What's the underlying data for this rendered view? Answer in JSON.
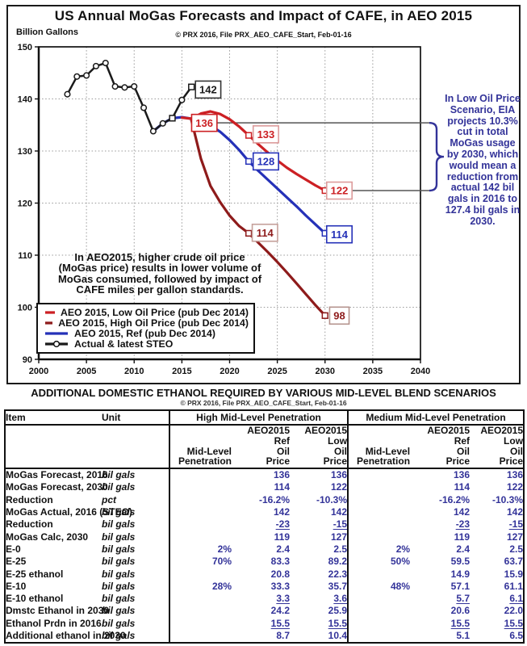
{
  "chart": {
    "title": "US Annual MoGas Forecasts and Impact of CAFE, in AEO 2015",
    "y_axis_label": "Billion Gallons",
    "credit": "© PRX 2016, File PRX_AEO_CAFE_Start, Feb-01-16",
    "note": "In AEO2015, higher crude oil price\n(MoGas price) results in lower volume of\nMoGas consumed, followed by impact of\nCAFE miles per gallon standards.",
    "annotation": "In Low Oil Price\nScenario, EIA\nprojects 10.3%\ncut in total\nMoGas usage\nby 2030, which\nwould mean a\nreduction from\nactual 142 bil\ngals in 2016 to\n127.4 bil gals in\n2030.",
    "colors": {
      "low_oil_red": "#cc2024",
      "high_oil_dark_red": "#8e1b1b",
      "ref_blue": "#2531b8",
      "actual_black": "#1a1a1a",
      "annotation_navy": "#333399",
      "table_value_navy": "#333399"
    }
  },
  "chart_data": {
    "type": "line",
    "title": "US Annual MoGas Forecasts and Impact of CAFE, in AEO 2015",
    "xlabel": "",
    "ylabel": "Billion Gallons",
    "xlim": [
      2000,
      2040
    ],
    "ylim": [
      90,
      150
    ],
    "x_ticks": [
      2000,
      2005,
      2010,
      2015,
      2020,
      2025,
      2030,
      2035,
      2040
    ],
    "y_ticks": [
      90,
      100,
      110,
      120,
      130,
      140,
      150
    ],
    "grid": true,
    "legend_position": "inside-bottom-left",
    "series": [
      {
        "name": "AEO 2015, High Oil Price (pub Dec 2014)",
        "color": "#8e1b1b",
        "width": 3.2,
        "points": [
          [
            2016,
            135.9
          ],
          [
            2017,
            128.5
          ],
          [
            2018,
            123.3
          ],
          [
            2019,
            120.2
          ],
          [
            2020,
            117.6
          ],
          [
            2021,
            115.6
          ],
          [
            2022,
            114.2
          ],
          [
            2023,
            112.4
          ],
          [
            2024,
            110.6
          ],
          [
            2025,
            108.7
          ],
          [
            2026,
            106.7
          ],
          [
            2027,
            104.6
          ],
          [
            2028,
            102.5
          ],
          [
            2029,
            100.4
          ],
          [
            2030,
            98.4
          ]
        ],
        "square_markers": [
          [
            2022,
            114.2
          ],
          [
            2030,
            98.4
          ]
        ]
      },
      {
        "name": "AEO 2015, Ref (pub Dec 2014)",
        "color": "#2531b8",
        "width": 3.2,
        "points": [
          [
            2012,
            133.8
          ],
          [
            2013,
            135.3
          ],
          [
            2014,
            136.3
          ],
          [
            2015,
            136.5
          ],
          [
            2016,
            136.2
          ],
          [
            2017,
            135.7
          ],
          [
            2018,
            134.9
          ],
          [
            2019,
            133.7
          ],
          [
            2020,
            132.1
          ],
          [
            2021,
            130.2
          ],
          [
            2022,
            128.0
          ],
          [
            2023,
            126.2
          ],
          [
            2024,
            124.5
          ],
          [
            2025,
            122.8
          ],
          [
            2026,
            121.1
          ],
          [
            2027,
            119.4
          ],
          [
            2028,
            117.6
          ],
          [
            2029,
            115.9
          ],
          [
            2030,
            114.2
          ]
        ],
        "square_markers": [
          [
            2022,
            128.0
          ],
          [
            2030,
            114.2
          ]
        ]
      },
      {
        "name": "AEO 2015, Low Oil Price (pub Dec 2014)",
        "color": "#cc2024",
        "width": 3.2,
        "points": [
          [
            2015,
            136.4
          ],
          [
            2016,
            136.2
          ],
          [
            2017,
            137.2
          ],
          [
            2018,
            137.6
          ],
          [
            2019,
            137.1
          ],
          [
            2020,
            136.1
          ],
          [
            2021,
            134.7
          ],
          [
            2022,
            133.0
          ],
          [
            2023,
            131.3
          ],
          [
            2024,
            129.7
          ],
          [
            2025,
            128.2
          ],
          [
            2026,
            126.8
          ],
          [
            2027,
            125.6
          ],
          [
            2028,
            124.5
          ],
          [
            2029,
            123.4
          ],
          [
            2030,
            122.4
          ]
        ],
        "square_markers": [
          [
            2022,
            133.0
          ],
          [
            2030,
            122.4
          ]
        ]
      },
      {
        "name": "Actual & latest STEO",
        "color": "#1a1a1a",
        "width": 2.5,
        "points": [
          [
            2003,
            140.9
          ],
          [
            2004,
            144.3
          ],
          [
            2005,
            144.5
          ],
          [
            2006,
            146.3
          ],
          [
            2007,
            146.9
          ],
          [
            2008,
            142.4
          ],
          [
            2009,
            142.2
          ],
          [
            2010,
            142.4
          ],
          [
            2011,
            138.3
          ],
          [
            2012,
            133.8
          ],
          [
            2013,
            135.3
          ],
          [
            2014,
            136.3
          ],
          [
            2015,
            139.8
          ],
          [
            2016,
            142.3
          ]
        ],
        "circle_markers": [
          [
            2003,
            140.9
          ],
          [
            2004,
            144.3
          ],
          [
            2005,
            144.5
          ],
          [
            2006,
            146.3
          ],
          [
            2007,
            146.9
          ],
          [
            2008,
            142.4
          ],
          [
            2009,
            142.2
          ],
          [
            2010,
            142.4
          ],
          [
            2011,
            138.3
          ],
          [
            2012,
            133.8
          ],
          [
            2013,
            135.3
          ],
          [
            2015,
            139.8
          ]
        ],
        "square_markers": [
          [
            2014,
            136.3
          ],
          [
            2016,
            142.3
          ]
        ]
      }
    ],
    "point_labels": [
      {
        "text": "142",
        "x": 2017.75,
        "y": 141.8,
        "color": "#1a1a1a",
        "border": "#333333"
      },
      {
        "text": "136",
        "x": 2017.35,
        "y": 135.4,
        "color": "#cc2024",
        "border": "#cc2024",
        "connector": true
      },
      {
        "text": "133",
        "x": 2023.8,
        "y": 133.2,
        "color": "#cc2024",
        "border": "#dd9b9b"
      },
      {
        "text": "128",
        "x": 2023.8,
        "y": 128.0,
        "color": "#2531b8",
        "border": "#2531b8"
      },
      {
        "text": "114",
        "x": 2023.7,
        "y": 114.3,
        "color": "#8e1b1b",
        "border": "#c5a09a"
      },
      {
        "text": "122",
        "x": 2031.5,
        "y": 122.4,
        "color": "#cc2024",
        "border": "#dd9b9b",
        "connector": true
      },
      {
        "text": "114",
        "x": 2031.5,
        "y": 114.0,
        "color": "#2531b8",
        "border": "#2531b8"
      },
      {
        "text": "98",
        "x": 2031.5,
        "y": 98.4,
        "color": "#8e1b1b",
        "border": "#b5948e"
      }
    ],
    "legend": [
      {
        "label": "AEO 2015, Low Oil Price (pub Dec 2014)",
        "color": "#cc2024",
        "marker": false
      },
      {
        "label": "AEO 2015, High Oil Price (pub Dec 2014)",
        "color": "#8e1b1b",
        "marker": false
      },
      {
        "label": "AEO 2015, Ref (pub Dec 2014)",
        "color": "#2531b8",
        "marker": false
      },
      {
        "label": "Actual & latest STEO",
        "color": "#1a1a1a",
        "marker": true
      }
    ]
  },
  "table": {
    "title": "ADDITIONAL DOMESTIC ETHANOL REQUIRED BY VARIOUS MID-LEVEL BLEND SCENARIOS",
    "credit": "© PRX 2016, File PRX_AEO_CAFE_Start, Feb-01-16",
    "headers": {
      "item": "Item",
      "unit": "Unit",
      "groups": [
        "High Mid-Level Penetration",
        "Medium Mid-Level Penetration"
      ],
      "subcols": [
        "Mid-Level\nPenetration",
        "AEO2015\nRef\nOil\nPrice",
        "AEO2015\nLow\nOil\nPrice"
      ]
    },
    "rows": [
      {
        "item": "MoGas Forecast, 2016",
        "unit": "bil gals",
        "values": [
          "",
          "136",
          "136",
          "",
          "136",
          "136"
        ],
        "underline": false
      },
      {
        "item": "MoGas Forecast, 2030",
        "unit": "bil gals",
        "values": [
          "",
          "114",
          "122",
          "",
          "114",
          "122"
        ],
        "underline": false
      },
      {
        "item": "Reduction",
        "unit": "pct",
        "values": [
          "",
          "-16.2%",
          "-10.3%",
          "",
          "-16.2%",
          "-10.3%"
        ],
        "underline": false
      },
      {
        "item": "MoGas Actual, 2016 (STEO)",
        "unit": "bil gals",
        "values": [
          "",
          "142",
          "142",
          "",
          "142",
          "142"
        ],
        "underline": false
      },
      {
        "item": "Reduction",
        "unit": "bil gals",
        "values": [
          "",
          "-23",
          "-15",
          "",
          "-23",
          "-15"
        ],
        "underline": true
      },
      {
        "item": "MoGas Calc, 2030",
        "unit": "bil gals",
        "values": [
          "",
          "119",
          "127",
          "",
          "119",
          "127"
        ],
        "underline": false
      },
      {
        "item": "E-0",
        "unit": "bil gals",
        "values": [
          "2%",
          "2.4",
          "2.5",
          "2%",
          "2.4",
          "2.5"
        ],
        "underline": false
      },
      {
        "item": "E-25",
        "unit": "bil gals",
        "values": [
          "70%",
          "83.3",
          "89.2",
          "50%",
          "59.5",
          "63.7"
        ],
        "underline": false
      },
      {
        "item": "E-25 ethanol",
        "unit": "bil gals",
        "values": [
          "",
          "20.8",
          "22.3",
          "",
          "14.9",
          "15.9"
        ],
        "underline": false
      },
      {
        "item": "E-10",
        "unit": "bil gals",
        "values": [
          "28%",
          "33.3",
          "35.7",
          "48%",
          "57.1",
          "61.1"
        ],
        "underline": false
      },
      {
        "item": "E-10 ethanol",
        "unit": "bil gals",
        "values": [
          "",
          "3.3",
          "3.6",
          "",
          "5.7",
          "6.1"
        ],
        "underline": true
      },
      {
        "item": "Dmstc Ethanol in 2030",
        "unit": "bil gals",
        "values": [
          "",
          "24.2",
          "25.9",
          "",
          "20.6",
          "22.0"
        ],
        "underline": false
      },
      {
        "item": "Ethanol Prdn in 2016",
        "unit": "bil gals",
        "values": [
          "",
          "15.5",
          "15.5",
          "",
          "15.5",
          "15.5"
        ],
        "underline": true
      },
      {
        "item": "Additional ethanol in 2030",
        "unit": "bil gals",
        "values": [
          "",
          "8.7",
          "10.4",
          "",
          "5.1",
          "6.5"
        ],
        "underline": false
      }
    ]
  }
}
